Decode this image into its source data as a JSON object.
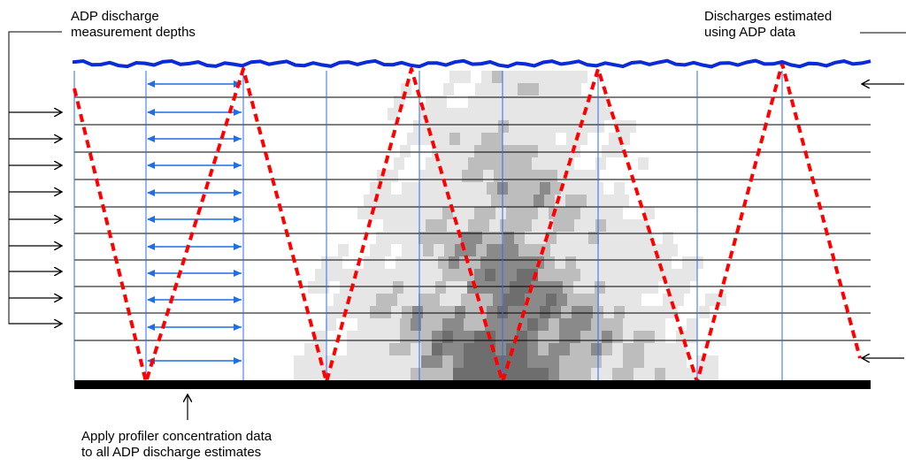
{
  "labels": {
    "depths": [
      "ADP discharge",
      "measurement depths"
    ],
    "discharges": [
      "Discharges estimated",
      "using ADP data"
    ],
    "profiler": [
      "Apply profiler concentration data",
      "to all ADP discharge estimates"
    ]
  },
  "colors": {
    "water_surface": "#0a2bd6",
    "bed": "#000000",
    "transect_path": "#ff0000",
    "vertical_lines": "#2a6cf0",
    "span_arrows": "#1e6fe6",
    "plume_light": "#e6e6e6",
    "plume_mid": "#bdbdbd",
    "plume_dark": "#8a8a8a"
  },
  "icons": [
    "arrow-right-icon",
    "arrow-left-icon",
    "arrow-up-icon",
    "double-arrow-icon"
  ],
  "counts": {
    "measurement_depths": 9,
    "discharge_span_arrows": 11
  }
}
